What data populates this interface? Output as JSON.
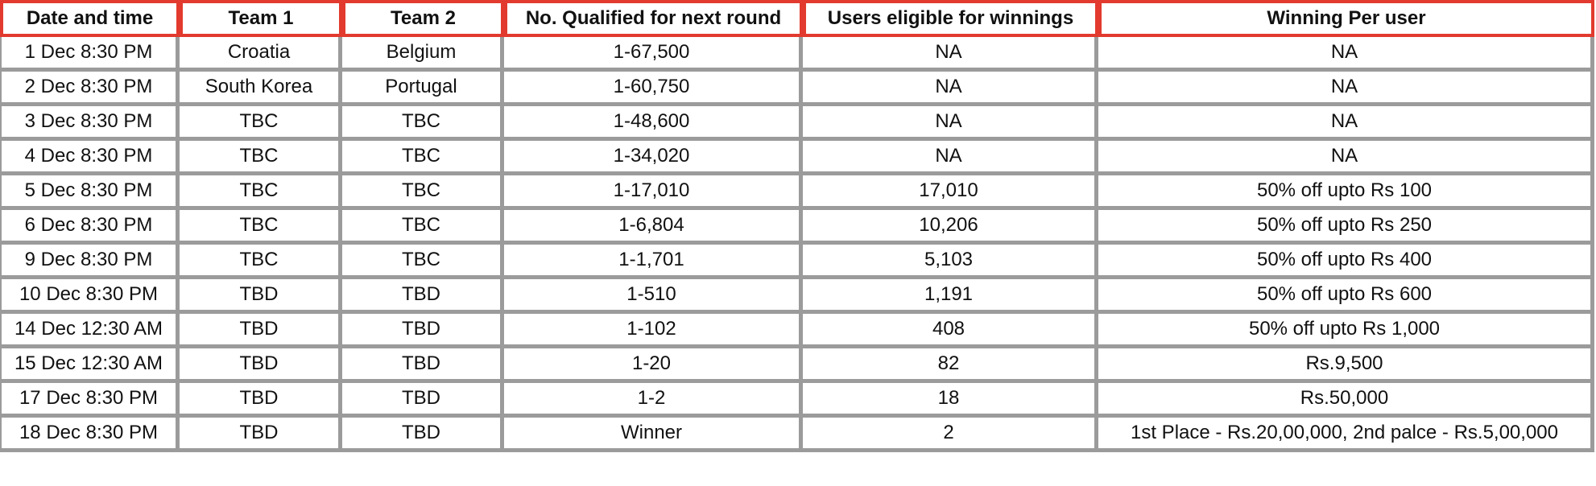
{
  "table": {
    "headers": [
      "Date and time",
      "Team 1",
      "Team 2",
      "No. Qualified for next round",
      "Users eligible for winnings",
      "Winning Per user"
    ],
    "rows": [
      [
        "1 Dec 8:30 PM",
        "Croatia",
        "Belgium",
        "1-67,500",
        "NA",
        "NA"
      ],
      [
        "2 Dec 8:30 PM",
        "South Korea",
        "Portugal",
        "1-60,750",
        "NA",
        "NA"
      ],
      [
        "3 Dec 8:30 PM",
        "TBC",
        "TBC",
        "1-48,600",
        "NA",
        "NA"
      ],
      [
        "4 Dec 8:30 PM",
        "TBC",
        "TBC",
        "1-34,020",
        "NA",
        "NA"
      ],
      [
        "5 Dec 8:30 PM",
        "TBC",
        "TBC",
        "1-17,010",
        "17,010",
        "50% off upto Rs 100"
      ],
      [
        "6 Dec 8:30 PM",
        "TBC",
        "TBC",
        "1-6,804",
        "10,206",
        "50% off upto Rs 250"
      ],
      [
        "9 Dec 8:30 PM",
        "TBC",
        "TBC",
        "1-1,701",
        "5,103",
        "50% off upto Rs 400"
      ],
      [
        "10 Dec 8:30 PM",
        "TBD",
        "TBD",
        "1-510",
        "1,191",
        "50% off upto Rs 600"
      ],
      [
        "14 Dec 12:30 AM",
        "TBD",
        "TBD",
        "1-102",
        "408",
        "50% off upto Rs 1,000"
      ],
      [
        "15 Dec 12:30 AM",
        "TBD",
        "TBD",
        "1-20",
        "82",
        "Rs.9,500"
      ],
      [
        "17 Dec 8:30 PM",
        "TBD",
        "TBD",
        "1-2",
        "18",
        "Rs.50,000"
      ],
      [
        "18 Dec 8:30 PM",
        "TBD",
        "TBD",
        "Winner",
        "2",
        "1st Place - Rs.20,00,000, 2nd palce - Rs.5,00,000"
      ]
    ]
  },
  "colors": {
    "header_border": "#e23a2e",
    "grid_border": "#9b9b9b",
    "text": "#111111",
    "background": "#ffffff"
  }
}
